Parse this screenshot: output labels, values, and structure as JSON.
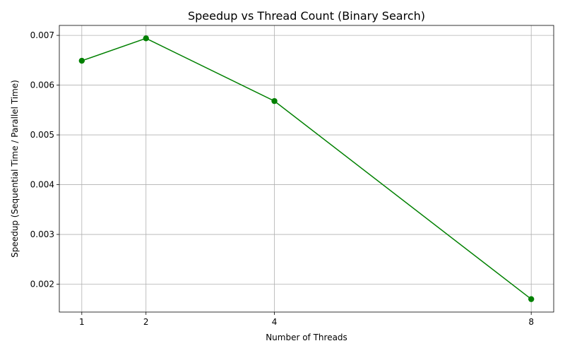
{
  "chart_data": {
    "type": "line",
    "title": "Speedup vs Thread Count (Binary Search)",
    "xlabel": "Number of Threads",
    "ylabel": "Speedup (Sequential Time / Parallel Time)",
    "x": [
      1,
      2,
      4,
      8
    ],
    "xticks": [
      "1",
      "2",
      "4",
      "8"
    ],
    "series": [
      {
        "values": [
          0.00649,
          0.00694,
          0.00568,
          0.0017
        ],
        "color": "#008000",
        "marker": "circle"
      }
    ],
    "yticks": [
      "0.002",
      "0.003",
      "0.004",
      "0.005",
      "0.006",
      "0.007"
    ],
    "xlim": [
      0.65,
      8.35
    ],
    "ylim": [
      0.00144,
      0.0072
    ],
    "grid": true
  }
}
